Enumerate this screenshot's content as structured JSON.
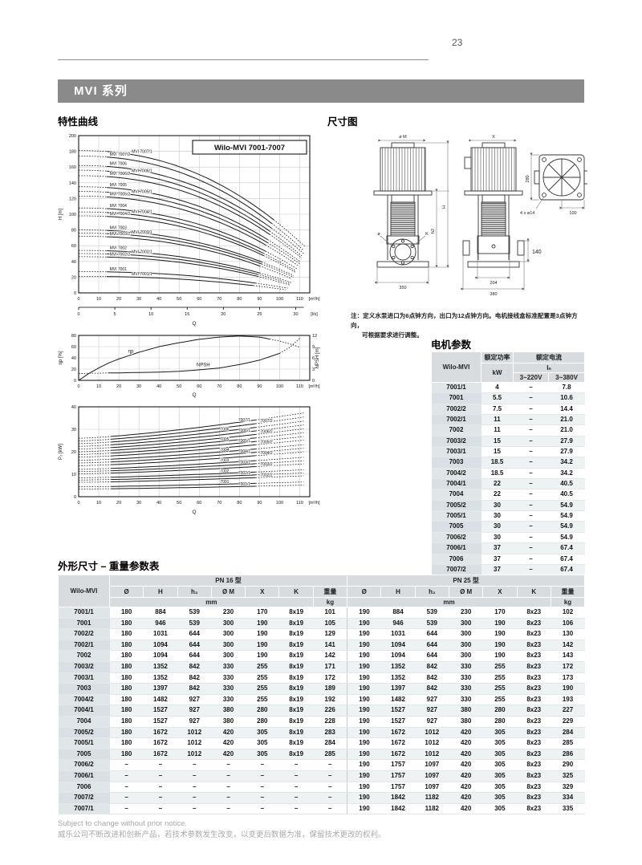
{
  "page": {
    "number": "23"
  },
  "header": {
    "title": "MVI 系列"
  },
  "sections": {
    "curves_heading": "特性曲线",
    "dims_heading": "尺寸图",
    "motor_heading": "电机参数",
    "table_heading": "外形尺寸 – 重量参数表"
  },
  "note": {
    "line1": "注：定义水泵进口为6点钟方向，出口为12点钟方向。电机接线盒标准配置是3点钟方向，",
    "line2": "可根据要求进行调整。"
  },
  "dimension_drawing": {
    "labels": {
      "motor_dia": "ø M",
      "x": "X",
      "total_height": "H",
      "pump_height": "h2",
      "k": "K",
      "flange_dia": "ø",
      "base_width": "350",
      "port_width": "204",
      "base_length": "380",
      "port_height": "140",
      "fan_width": "280",
      "pitch": "100",
      "holes": "4 x ø14"
    }
  },
  "motor_table": {
    "col1": "Wilo-MVI",
    "power": "额定功率",
    "current": "额定电流",
    "kw": "kW",
    "in": "Iₙ",
    "v220": "3~220V",
    "v380": "3~380V",
    "rows": [
      [
        "7001/1",
        "4",
        "–",
        "7.8"
      ],
      [
        "7001",
        "5.5",
        "–",
        "10.6"
      ],
      [
        "7002/2",
        "7.5",
        "–",
        "14.4"
      ],
      [
        "7002/1",
        "11",
        "–",
        "21.0"
      ],
      [
        "7002",
        "11",
        "–",
        "21.0"
      ],
      [
        "7003/2",
        "15",
        "–",
        "27.9"
      ],
      [
        "7003/1",
        "15",
        "–",
        "27.9"
      ],
      [
        "7003",
        "18.5",
        "–",
        "34.2"
      ],
      [
        "7004/2",
        "18.5",
        "–",
        "34.2"
      ],
      [
        "7004/1",
        "22",
        "–",
        "40.5"
      ],
      [
        "7004",
        "22",
        "–",
        "40.5"
      ],
      [
        "7005/2",
        "30",
        "–",
        "54.9"
      ],
      [
        "7005/1",
        "30",
        "–",
        "54.9"
      ],
      [
        "7005",
        "30",
        "–",
        "54.9"
      ],
      [
        "7006/2",
        "30",
        "–",
        "54.9"
      ],
      [
        "7006/1",
        "37",
        "–",
        "67.4"
      ],
      [
        "7006",
        "37",
        "–",
        "67.4"
      ],
      [
        "7007/2",
        "37",
        "–",
        "67.4"
      ],
      [
        "7007/1",
        "37",
        "–",
        "67.4"
      ]
    ]
  },
  "dims_table": {
    "col1": "Wilo-MVI",
    "pn16": "PN 16 型",
    "pn25": "PN 25 型",
    "cols": [
      "Ø",
      "H",
      "h₂",
      "Ø M",
      "X",
      "K",
      "重量"
    ],
    "mm": "mm",
    "kg": "kg",
    "rows": [
      [
        "7001/1",
        "180",
        "884",
        "539",
        "230",
        "170",
        "8x19",
        "101",
        "190",
        "884",
        "539",
        "230",
        "170",
        "8x23",
        "102"
      ],
      [
        "7001",
        "180",
        "946",
        "539",
        "300",
        "190",
        "8x19",
        "105",
        "190",
        "946",
        "539",
        "300",
        "190",
        "8x23",
        "106"
      ],
      [
        "7002/2",
        "180",
        "1031",
        "644",
        "300",
        "190",
        "8x19",
        "129",
        "190",
        "1031",
        "644",
        "300",
        "190",
        "8x23",
        "130"
      ],
      [
        "7002/1",
        "180",
        "1094",
        "644",
        "300",
        "190",
        "8x19",
        "141",
        "190",
        "1094",
        "644",
        "300",
        "190",
        "8x23",
        "142"
      ],
      [
        "7002",
        "180",
        "1094",
        "644",
        "300",
        "190",
        "8x19",
        "142",
        "190",
        "1094",
        "644",
        "300",
        "190",
        "8x23",
        "143"
      ],
      [
        "7003/2",
        "180",
        "1352",
        "842",
        "330",
        "255",
        "8x19",
        "171",
        "190",
        "1352",
        "842",
        "330",
        "255",
        "8x23",
        "172"
      ],
      [
        "7003/1",
        "180",
        "1352",
        "842",
        "330",
        "255",
        "8x19",
        "172",
        "190",
        "1352",
        "842",
        "330",
        "255",
        "8x23",
        "173"
      ],
      [
        "7003",
        "180",
        "1397",
        "842",
        "330",
        "255",
        "8x19",
        "189",
        "190",
        "1397",
        "842",
        "330",
        "255",
        "8x23",
        "190"
      ],
      [
        "7004/2",
        "180",
        "1482",
        "927",
        "330",
        "255",
        "8x19",
        "192",
        "190",
        "1482",
        "927",
        "330",
        "255",
        "8x23",
        "193"
      ],
      [
        "7004/1",
        "180",
        "1527",
        "927",
        "380",
        "280",
        "8x19",
        "226",
        "190",
        "1527",
        "927",
        "380",
        "280",
        "8x23",
        "227"
      ],
      [
        "7004",
        "180",
        "1527",
        "927",
        "380",
        "280",
        "8x19",
        "228",
        "190",
        "1527",
        "927",
        "380",
        "280",
        "8x23",
        "229"
      ],
      [
        "7005/2",
        "180",
        "1672",
        "1012",
        "420",
        "305",
        "8x19",
        "283",
        "190",
        "1672",
        "1012",
        "420",
        "305",
        "8x23",
        "284"
      ],
      [
        "7005/1",
        "180",
        "1672",
        "1012",
        "420",
        "305",
        "8x19",
        "284",
        "190",
        "1672",
        "1012",
        "420",
        "305",
        "8x23",
        "285"
      ],
      [
        "7005",
        "180",
        "1672",
        "1012",
        "420",
        "305",
        "8x19",
        "285",
        "190",
        "1672",
        "1012",
        "420",
        "305",
        "8x23",
        "286"
      ],
      [
        "7006/2",
        "–",
        "–",
        "–",
        "–",
        "–",
        "–",
        "–",
        "190",
        "1757",
        "1097",
        "420",
        "305",
        "8x23",
        "290"
      ],
      [
        "7006/1",
        "–",
        "–",
        "–",
        "–",
        "–",
        "–",
        "–",
        "190",
        "1757",
        "1097",
        "420",
        "305",
        "8x23",
        "325"
      ],
      [
        "7006",
        "–",
        "–",
        "–",
        "–",
        "–",
        "–",
        "–",
        "190",
        "1757",
        "1097",
        "420",
        "305",
        "8x23",
        "329"
      ],
      [
        "7007/2",
        "–",
        "–",
        "–",
        "–",
        "–",
        "–",
        "–",
        "190",
        "1842",
        "1182",
        "420",
        "305",
        "8x23",
        "334"
      ],
      [
        "7007/1",
        "–",
        "–",
        "–",
        "–",
        "–",
        "–",
        "–",
        "190",
        "1842",
        "1182",
        "420",
        "305",
        "8x23",
        "335"
      ]
    ]
  },
  "footer": {
    "line1": "Subject to change without prior notice.",
    "line2": "威乐公司不断改进和创新产品，若技术参数发生改变，以变更后数据为准，保留技术更改的权利。"
  },
  "chart_data": [
    {
      "type": "line",
      "title": "Wilo-MVI 7001-7007",
      "xlabel": "Q",
      "ylabel": "H [m]",
      "x_unit": "[m³/h]",
      "x_unit2": "[l/s]",
      "xlim": [
        0,
        115
      ],
      "ylim": [
        0,
        200
      ],
      "x_ticks_m3h": [
        0,
        10,
        20,
        30,
        40,
        50,
        60,
        70,
        80,
        90,
        100,
        110
      ],
      "x_ticks_ls": [
        0,
        5,
        10,
        15,
        20,
        25,
        30
      ],
      "y_ticks": [
        0,
        20,
        40,
        60,
        80,
        100,
        120,
        140,
        160,
        180,
        200
      ],
      "grid": true,
      "legend_position": "on-curve",
      "series": [
        {
          "name": "MVI 7007/1",
          "h0": 181,
          "hend": 58,
          "qend": 113
        },
        {
          "name": "MVI 7007/2",
          "h0": 174,
          "hend": 54,
          "qend": 112
        },
        {
          "name": "MVI 7006",
          "h0": 162,
          "hend": 50,
          "qend": 112
        },
        {
          "name": "MVI 7006/1",
          "h0": 156,
          "hend": 47,
          "qend": 111
        },
        {
          "name": "MVI 7006/2",
          "h0": 149,
          "hend": 44,
          "qend": 111
        },
        {
          "name": "MVI 7005",
          "h0": 135,
          "hend": 40,
          "qend": 110
        },
        {
          "name": "MVI 7005/1",
          "h0": 129,
          "hend": 37,
          "qend": 110
        },
        {
          "name": "MVI 7005/2",
          "h0": 123,
          "hend": 35,
          "qend": 109
        },
        {
          "name": "MVI 7004",
          "h0": 108,
          "hend": 30,
          "qend": 109
        },
        {
          "name": "MVI 7004/1",
          "h0": 103,
          "hend": 28,
          "qend": 108
        },
        {
          "name": "MVI 7004/2",
          "h0": 98,
          "hend": 26,
          "qend": 108
        },
        {
          "name": "MVI 7003",
          "h0": 80,
          "hend": 22,
          "qend": 107
        },
        {
          "name": "MVI 7003/1",
          "h0": 76,
          "hend": 20,
          "qend": 107
        },
        {
          "name": "MVI 7003/2",
          "h0": 72,
          "hend": 18,
          "qend": 106
        },
        {
          "name": "MVI 7002",
          "h0": 54,
          "hend": 13,
          "qend": 106
        },
        {
          "name": "MVI 7002/1",
          "h0": 50,
          "hend": 12,
          "qend": 105
        },
        {
          "name": "MVI 7002/2",
          "h0": 46,
          "hend": 10,
          "qend": 105
        },
        {
          "name": "MVI 7001",
          "h0": 27,
          "hend": 6,
          "qend": 104
        },
        {
          "name": "MVI 7001/1",
          "h0": 21,
          "hend": 4,
          "qend": 103
        }
      ]
    },
    {
      "type": "line",
      "xlabel": "Q",
      "ylabel_left": "ηp [%]",
      "ylabel_right": "NPSH [m]",
      "x_unit": "[m³/h]",
      "xlim": [
        0,
        115
      ],
      "ylim_left": [
        0,
        80
      ],
      "ylim_right": [
        0,
        12
      ],
      "y_ticks_left": [
        0,
        20,
        40,
        60,
        80
      ],
      "y_ticks_right": [
        0,
        3,
        6,
        9,
        12
      ],
      "x": [
        0,
        5,
        10,
        15,
        20,
        30,
        40,
        50,
        60,
        70,
        80,
        90,
        100,
        105,
        110
      ],
      "series": [
        {
          "name": "ηp",
          "axis": "left",
          "y": [
            0,
            12,
            22,
            31,
            38,
            50,
            60,
            67,
            73,
            77,
            79,
            77,
            70,
            65,
            59
          ]
        },
        {
          "name": "NPSH",
          "axis": "right",
          "y": [
            1.8,
            1.9,
            1.9,
            2.0,
            2.0,
            2.1,
            2.2,
            2.4,
            2.8,
            3.3,
            4.2,
            5.4,
            7.2,
            8.8,
            11.2
          ]
        }
      ]
    },
    {
      "type": "line",
      "xlabel": "Q",
      "ylabel": "P₂ [kW]",
      "x_unit": "[m³/h]",
      "xlim": [
        0,
        115
      ],
      "ylim": [
        0,
        40
      ],
      "y_ticks": [
        0,
        10,
        20,
        30,
        40
      ],
      "series": [
        {
          "name": "7007/1",
          "p0": 26,
          "pend": 37
        },
        {
          "name": "7007/2",
          "p0": 24.8,
          "pend": 35.2
        },
        {
          "name": "7006",
          "p0": 23.6,
          "pend": 33.4
        },
        {
          "name": "7006/1",
          "p0": 22.4,
          "pend": 31.7
        },
        {
          "name": "7006/2",
          "p0": 21.2,
          "pend": 30
        },
        {
          "name": "7005",
          "p0": 20,
          "pend": 28.3
        },
        {
          "name": "7005/1",
          "p0": 18.8,
          "pend": 26.6
        },
        {
          "name": "7005/2",
          "p0": 17.6,
          "pend": 25
        },
        {
          "name": "7004",
          "p0": 16.2,
          "pend": 23
        },
        {
          "name": "7004/1",
          "p0": 15,
          "pend": 21.4
        },
        {
          "name": "7004/2",
          "p0": 13.8,
          "pend": 19.8
        },
        {
          "name": "7003",
          "p0": 12.2,
          "pend": 17.4
        },
        {
          "name": "7003/1",
          "p0": 11.2,
          "pend": 15.9
        },
        {
          "name": "7003/2",
          "p0": 10.2,
          "pend": 14.5
        },
        {
          "name": "7002",
          "p0": 8.4,
          "pend": 11.9
        },
        {
          "name": "7002/1",
          "p0": 7.4,
          "pend": 10.5
        },
        {
          "name": "7002/2",
          "p0": 6.4,
          "pend": 9.2
        },
        {
          "name": "7001",
          "p0": 4.4,
          "pend": 6.5
        },
        {
          "name": "7001/1",
          "p0": 3.4,
          "pend": 5.1
        }
      ]
    }
  ]
}
